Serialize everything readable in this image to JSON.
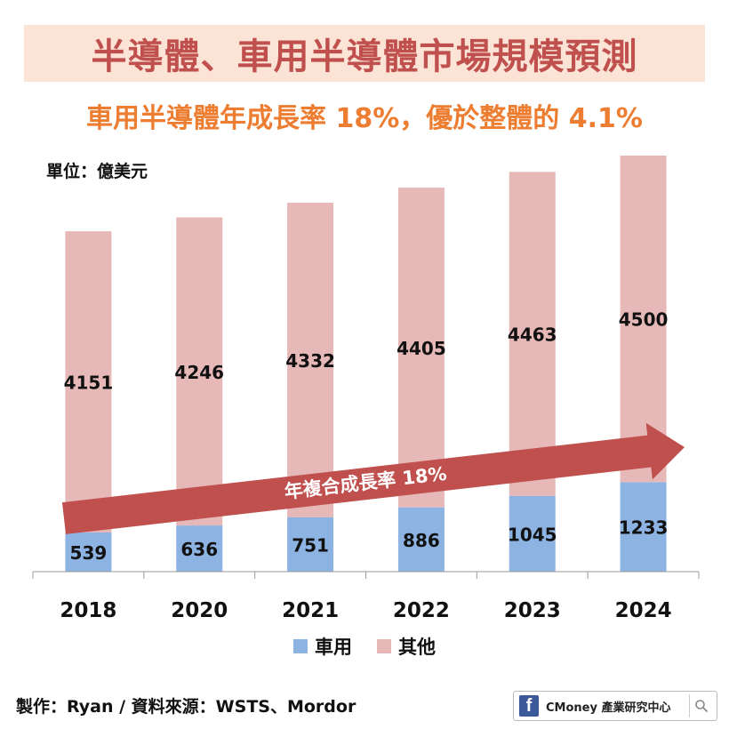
{
  "header": {
    "title": "半導體、車用半導體市場規模預測",
    "subtitle": "車用半導體年成長率 18%，優於整體的 4.1%",
    "unit_label": "單位：億美元"
  },
  "chart_data": {
    "type": "bar",
    "stacked": true,
    "categories": [
      "2018",
      "2020",
      "2021",
      "2022",
      "2023",
      "2024"
    ],
    "series": [
      {
        "name": "車用",
        "color": "#8db3e2",
        "values": [
          539,
          636,
          751,
          886,
          1045,
          1233
        ]
      },
      {
        "name": "其他",
        "color": "#e6b9b8",
        "values": [
          4151,
          4246,
          4332,
          4405,
          4463,
          4500
        ]
      }
    ],
    "ylim": [
      0,
      5733
    ],
    "grid": false,
    "legend": "bottom",
    "annotation": {
      "text": "年複合成長率 18%",
      "color": "#c0504d"
    }
  },
  "footer": {
    "credit": "製作：Ryan / 資料來源：WSTS、Mordor",
    "brand": "CMoney 產業研究中心",
    "brand_icon": "facebook-icon",
    "search_icon": "search-icon"
  }
}
